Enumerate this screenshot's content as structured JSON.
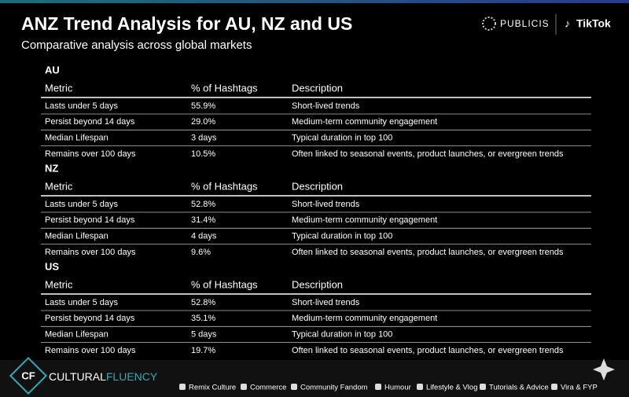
{
  "header": {
    "title": "ANZ Trend Analysis for AU, NZ and US",
    "subtitle": "Comparative analysis across global markets",
    "logos": [
      "PUBLICIS",
      "TikTok"
    ]
  },
  "sections": [
    {
      "label": "AU",
      "columns": [
        "Metric",
        "% of Hashtags",
        "Description"
      ],
      "rows": [
        [
          "Lasts under 5 days",
          "55.9%",
          "Short-lived trends"
        ],
        [
          "Persist beyond 14 days",
          "29.0%",
          "Medium-term community engagement"
        ],
        [
          "Median Lifespan",
          "3 days",
          "Typical duration in top 100"
        ],
        [
          "Remains over 100 days",
          "10.5%",
          "Often linked to seasonal events, product launches, or evergreen trends"
        ]
      ]
    },
    {
      "label": "NZ",
      "columns": [
        "Metric",
        "% of Hashtags",
        "Description"
      ],
      "rows": [
        [
          "Lasts under 5 days",
          "52.8%",
          "Short-lived trends"
        ],
        [
          "Persist beyond 14 days",
          "31.4%",
          "Medium-term community engagement"
        ],
        [
          "Median Lifespan",
          "4 days",
          "Typical duration in top 100"
        ],
        [
          "Remains over 100 days",
          "9.6%",
          "Often linked to seasonal events, product launches, or evergreen trends"
        ]
      ]
    },
    {
      "label": "US",
      "columns": [
        "Metric",
        "% of Hashtags",
        "Description"
      ],
      "rows": [
        [
          "Lasts under 5 days",
          "52.8%",
          "Short-lived trends"
        ],
        [
          "Persist beyond 14 days",
          "35.1%",
          "Medium-term community engagement"
        ],
        [
          "Median Lifespan",
          "5 days",
          "Typical duration in top 100"
        ],
        [
          "Remains over 100 days",
          "19.7%",
          "Often linked to seasonal events, product launches, or evergreen trends"
        ]
      ]
    }
  ],
  "footer": {
    "brand_mark": "CF",
    "brand": [
      "CULTURAL",
      "FLUENCY"
    ],
    "legend": [
      "Remix Culture",
      "Commerce",
      "Community Fandom",
      "Humour",
      "Lifestyle & Vlog",
      "Tutorials & Advice",
      "Vira & FYP"
    ]
  }
}
